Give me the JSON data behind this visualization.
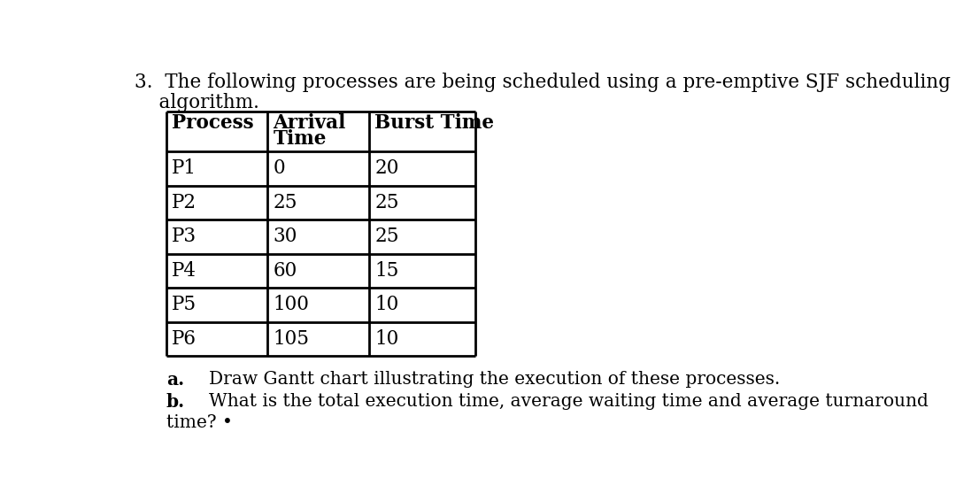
{
  "title_line1": "3.  The following processes are being scheduled using a pre-emptive SJF scheduling",
  "title_line2": "    algorithm.",
  "col_headers_line1": [
    "Process",
    "Arrival",
    "Burst Time"
  ],
  "col_headers_line2": [
    "",
    "Time",
    ""
  ],
  "rows": [
    [
      "P1",
      "0",
      "20"
    ],
    [
      "P2",
      "25",
      "25"
    ],
    [
      "P3",
      "30",
      "25"
    ],
    [
      "P4",
      "60",
      "15"
    ],
    [
      "P5",
      "100",
      "10"
    ],
    [
      "P6",
      "105",
      "10"
    ]
  ],
  "footer_a_label": "a.",
  "footer_a_text": "Draw Gantt chart illustrating the execution of these processes.",
  "footer_b_label": "b.",
  "footer_b_text": "What is the total execution time, average waiting time and average turnaround",
  "footer_c_text": "time? •",
  "background_color": "#ffffff",
  "text_color": "#000000",
  "title_fontsize": 15.5,
  "header_fontsize": 15.5,
  "cell_fontsize": 15.5,
  "footer_fontsize": 14.5
}
